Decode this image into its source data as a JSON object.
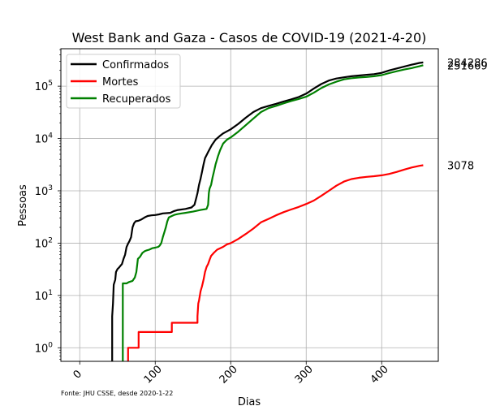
{
  "chart_data": {
    "type": "line",
    "title": "West Bank and Gaza - Casos de COVID-19 (2021-4-20)",
    "xlabel": "Dias",
    "ylabel": "Pessoas",
    "x_scale": "linear",
    "y_scale": "log",
    "xlim": [
      -25,
      475
    ],
    "ylim": [
      0.55,
      520000
    ],
    "x_ticks": [
      0,
      100,
      200,
      300,
      400
    ],
    "x_tick_labels": [
      "0",
      "100",
      "200",
      "300",
      "400"
    ],
    "y_ticks": [
      1,
      10,
      100,
      1000,
      10000,
      100000
    ],
    "y_tick_labels": [
      {
        "base": "10",
        "exp": "0"
      },
      {
        "base": "10",
        "exp": "1"
      },
      {
        "base": "10",
        "exp": "2"
      },
      {
        "base": "10",
        "exp": "3"
      },
      {
        "base": "10",
        "exp": "4"
      },
      {
        "base": "10",
        "exp": "5"
      }
    ],
    "grid": true,
    "legend_position": "top-left",
    "source_note": "Fonte: JHU CSSE, desde 2020-1-22",
    "series": [
      {
        "name": "Confirmados",
        "color": "#000000",
        "end_label": "284286",
        "points": [
          [
            43,
            0.55
          ],
          [
            43,
            4
          ],
          [
            44,
            7
          ],
          [
            45,
            16
          ],
          [
            47,
            20
          ],
          [
            48,
            28
          ],
          [
            50,
            32
          ],
          [
            52,
            34
          ],
          [
            54,
            37
          ],
          [
            56,
            40
          ],
          [
            58,
            50
          ],
          [
            60,
            60
          ],
          [
            62,
            84
          ],
          [
            64,
            98
          ],
          [
            66,
            110
          ],
          [
            68,
            130
          ],
          [
            70,
            200
          ],
          [
            72,
            240
          ],
          [
            74,
            262
          ],
          [
            78,
            268
          ],
          [
            82,
            285
          ],
          [
            86,
            310
          ],
          [
            90,
            330
          ],
          [
            95,
            340
          ],
          [
            100,
            345
          ],
          [
            105,
            355
          ],
          [
            110,
            370
          ],
          [
            120,
            380
          ],
          [
            125,
            410
          ],
          [
            130,
            430
          ],
          [
            140,
            450
          ],
          [
            148,
            480
          ],
          [
            152,
            540
          ],
          [
            154,
            700
          ],
          [
            156,
            900
          ],
          [
            158,
            1300
          ],
          [
            160,
            1700
          ],
          [
            162,
            2300
          ],
          [
            164,
            3200
          ],
          [
            166,
            4200
          ],
          [
            170,
            5500
          ],
          [
            175,
            7500
          ],
          [
            180,
            9500
          ],
          [
            185,
            11000
          ],
          [
            190,
            12500
          ],
          [
            200,
            15000
          ],
          [
            210,
            19000
          ],
          [
            220,
            25000
          ],
          [
            230,
            32000
          ],
          [
            240,
            38000
          ],
          [
            250,
            42000
          ],
          [
            260,
            46000
          ],
          [
            270,
            51000
          ],
          [
            280,
            56000
          ],
          [
            290,
            62000
          ],
          [
            300,
            72000
          ],
          [
            310,
            90000
          ],
          [
            320,
            110000
          ],
          [
            330,
            128000
          ],
          [
            340,
            140000
          ],
          [
            350,
            148000
          ],
          [
            360,
            155000
          ],
          [
            370,
            160000
          ],
          [
            380,
            165000
          ],
          [
            390,
            170000
          ],
          [
            400,
            180000
          ],
          [
            410,
            200000
          ],
          [
            420,
            218000
          ],
          [
            430,
            238000
          ],
          [
            440,
            258000
          ],
          [
            450,
            278000
          ],
          [
            455,
            284286
          ]
        ]
      },
      {
        "name": "Mortes",
        "color": "#ff0000",
        "end_label": "3078",
        "points": [
          [
            64,
            0.55
          ],
          [
            64,
            1
          ],
          [
            78,
            1
          ],
          [
            78,
            2
          ],
          [
            122,
            2
          ],
          [
            122,
            3
          ],
          [
            156,
            3
          ],
          [
            156,
            4
          ],
          [
            157,
            7
          ],
          [
            158,
            8
          ],
          [
            160,
            12
          ],
          [
            162,
            15
          ],
          [
            164,
            20
          ],
          [
            166,
            28
          ],
          [
            168,
            35
          ],
          [
            170,
            40
          ],
          [
            172,
            48
          ],
          [
            174,
            57
          ],
          [
            178,
            66
          ],
          [
            182,
            75
          ],
          [
            186,
            80
          ],
          [
            190,
            85
          ],
          [
            195,
            95
          ],
          [
            200,
            100
          ],
          [
            210,
            120
          ],
          [
            220,
            150
          ],
          [
            230,
            190
          ],
          [
            240,
            250
          ],
          [
            250,
            290
          ],
          [
            260,
            340
          ],
          [
            270,
            390
          ],
          [
            280,
            440
          ],
          [
            290,
            490
          ],
          [
            300,
            560
          ],
          [
            310,
            650
          ],
          [
            320,
            800
          ],
          [
            330,
            1000
          ],
          [
            340,
            1250
          ],
          [
            350,
            1500
          ],
          [
            360,
            1680
          ],
          [
            370,
            1780
          ],
          [
            380,
            1850
          ],
          [
            390,
            1900
          ],
          [
            400,
            1980
          ],
          [
            410,
            2100
          ],
          [
            420,
            2300
          ],
          [
            430,
            2550
          ],
          [
            440,
            2800
          ],
          [
            450,
            3000
          ],
          [
            455,
            3078
          ]
        ]
      },
      {
        "name": "Recuperados",
        "color": "#008000",
        "end_label": "251669",
        "points": [
          [
            57,
            0.55
          ],
          [
            57,
            17
          ],
          [
            62,
            17
          ],
          [
            65,
            18
          ],
          [
            70,
            19
          ],
          [
            73,
            22
          ],
          [
            75,
            28
          ],
          [
            77,
            50
          ],
          [
            80,
            55
          ],
          [
            83,
            65
          ],
          [
            86,
            70
          ],
          [
            88,
            72
          ],
          [
            92,
            75
          ],
          [
            96,
            80
          ],
          [
            100,
            82
          ],
          [
            104,
            85
          ],
          [
            106,
            90
          ],
          [
            108,
            100
          ],
          [
            110,
            130
          ],
          [
            112,
            160
          ],
          [
            114,
            200
          ],
          [
            116,
            260
          ],
          [
            118,
            310
          ],
          [
            122,
            330
          ],
          [
            126,
            350
          ],
          [
            130,
            360
          ],
          [
            135,
            370
          ],
          [
            140,
            380
          ],
          [
            150,
            400
          ],
          [
            160,
            430
          ],
          [
            168,
            450
          ],
          [
            170,
            540
          ],
          [
            171,
            900
          ],
          [
            172,
            1100
          ],
          [
            174,
            1300
          ],
          [
            176,
            1800
          ],
          [
            178,
            2400
          ],
          [
            180,
            3200
          ],
          [
            183,
            4500
          ],
          [
            186,
            6000
          ],
          [
            190,
            8000
          ],
          [
            195,
            9500
          ],
          [
            200,
            10500
          ],
          [
            210,
            13500
          ],
          [
            220,
            18000
          ],
          [
            230,
            24000
          ],
          [
            240,
            32000
          ],
          [
            250,
            38000
          ],
          [
            260,
            42000
          ],
          [
            270,
            47000
          ],
          [
            280,
            52000
          ],
          [
            290,
            57000
          ],
          [
            300,
            63000
          ],
          [
            310,
            75000
          ],
          [
            320,
            92000
          ],
          [
            330,
            108000
          ],
          [
            340,
            122000
          ],
          [
            350,
            135000
          ],
          [
            360,
            142000
          ],
          [
            370,
            147000
          ],
          [
            380,
            150000
          ],
          [
            390,
            155000
          ],
          [
            400,
            163000
          ],
          [
            410,
            178000
          ],
          [
            420,
            193000
          ],
          [
            430,
            208000
          ],
          [
            440,
            222000
          ],
          [
            450,
            240000
          ],
          [
            455,
            251669
          ]
        ]
      }
    ]
  }
}
